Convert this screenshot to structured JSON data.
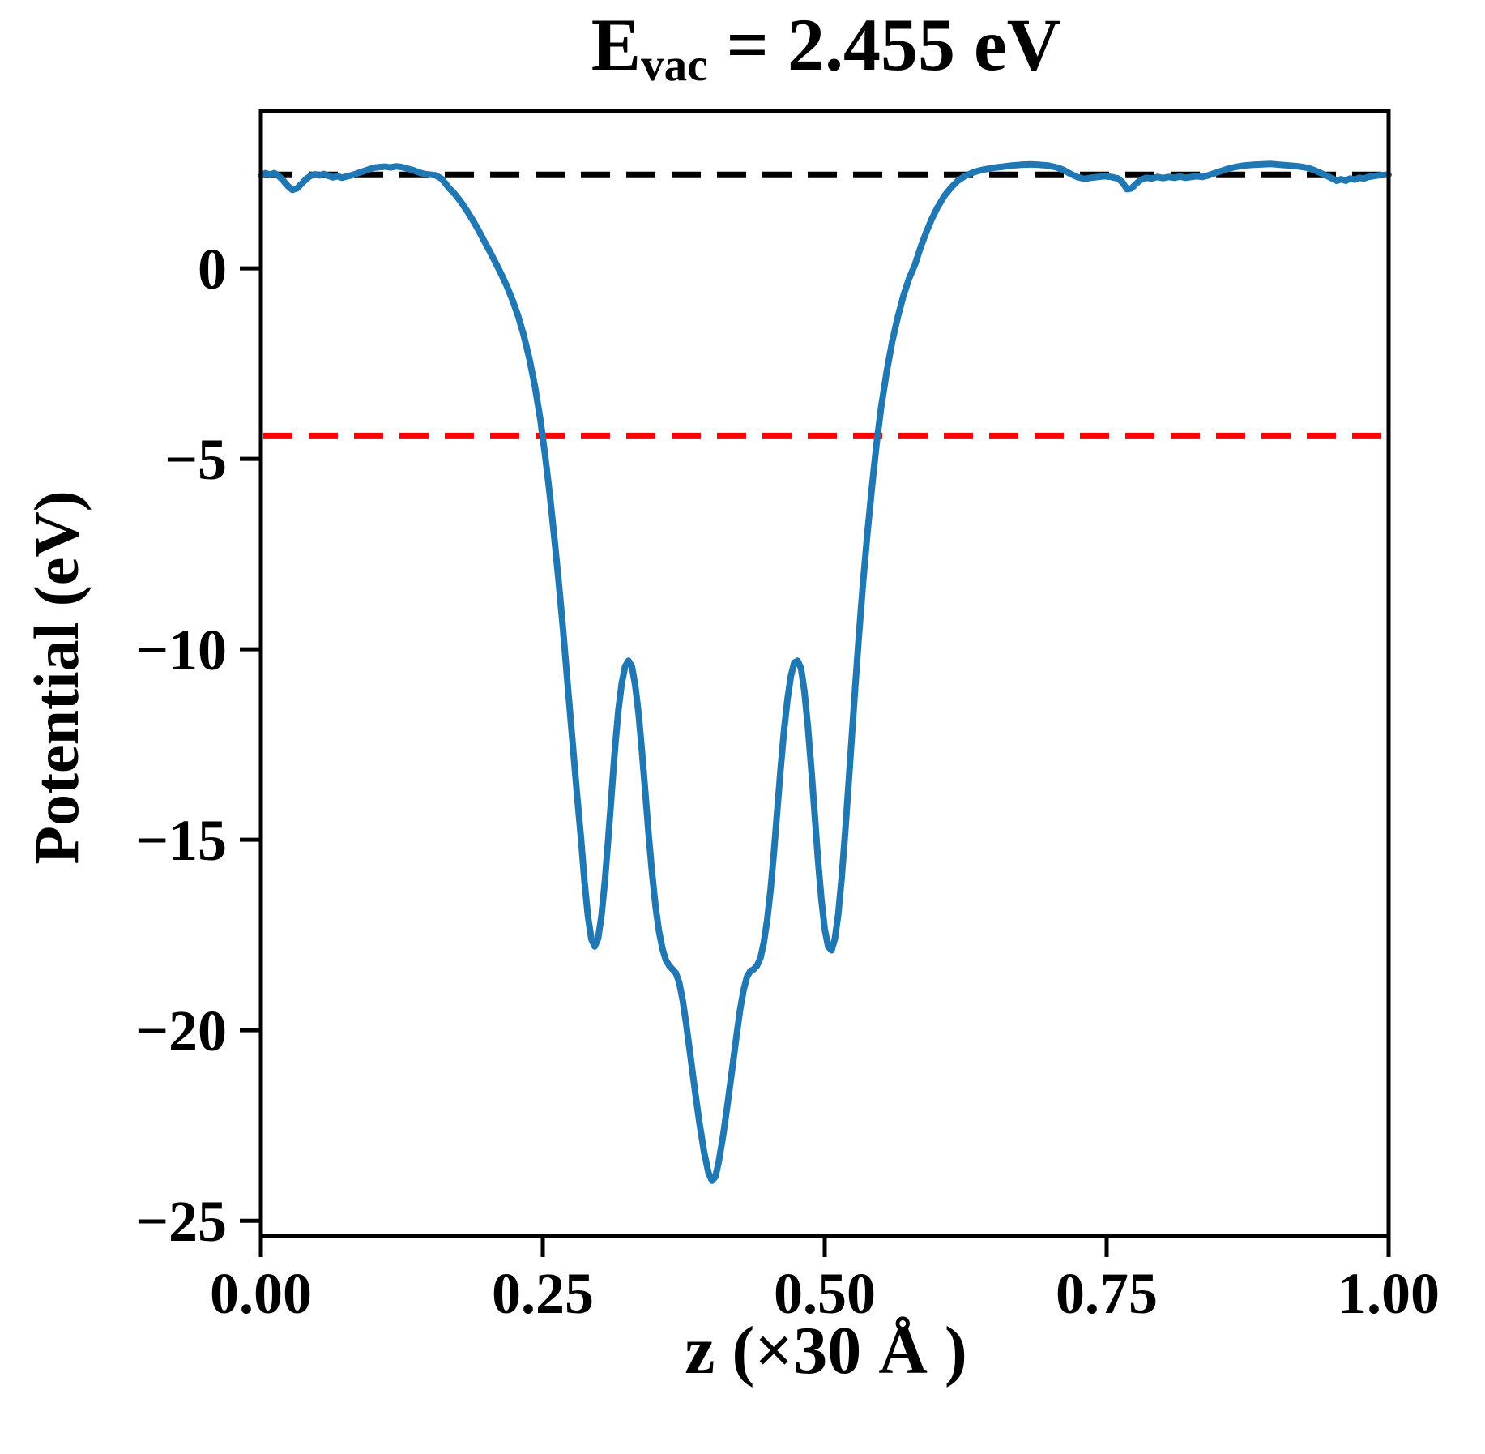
{
  "title": {
    "prefix": "E",
    "subscript": "vac",
    "rest": " = 2.455 eV"
  },
  "chart_data": {
    "type": "line",
    "title": "E_vac = 2.455 eV",
    "xlabel": "z (×30 Å )",
    "ylabel": "Potential (eV)",
    "xlim": [
      0.0,
      1.0
    ],
    "ylim": [
      -25.4,
      4.13
    ],
    "grid": false,
    "legend": "none",
    "xticks": [
      {
        "v": 0.0,
        "label": "0.00"
      },
      {
        "v": 0.25,
        "label": "0.25"
      },
      {
        "v": 0.5,
        "label": "0.50"
      },
      {
        "v": 0.75,
        "label": "0.75"
      },
      {
        "v": 1.0,
        "label": "1.00"
      }
    ],
    "yticks": [
      {
        "v": 0,
        "label": "0"
      },
      {
        "v": -5,
        "label": "−5"
      },
      {
        "v": -10,
        "label": "−10"
      },
      {
        "v": -15,
        "label": "−15"
      },
      {
        "v": -20,
        "label": "−20"
      },
      {
        "v": -25,
        "label": "−25"
      }
    ],
    "hlines": [
      {
        "name": "vacuum-level-line",
        "value": 2.455,
        "color": "#000000",
        "style": "dashed"
      },
      {
        "name": "fermi-level-line",
        "value": -4.4,
        "color": "#ff0000",
        "style": "dashed"
      }
    ],
    "series": [
      {
        "name": "planar-averaged-potential",
        "color": "#1f77b4",
        "points": [
          [
            0.0,
            2.43
          ],
          [
            0.004,
            2.5
          ],
          [
            0.008,
            2.46
          ],
          [
            0.012,
            2.5
          ],
          [
            0.016,
            2.42
          ],
          [
            0.02,
            2.3
          ],
          [
            0.024,
            2.16
          ],
          [
            0.028,
            2.06
          ],
          [
            0.032,
            2.1
          ],
          [
            0.036,
            2.22
          ],
          [
            0.04,
            2.34
          ],
          [
            0.044,
            2.43
          ],
          [
            0.048,
            2.47
          ],
          [
            0.052,
            2.44
          ],
          [
            0.056,
            2.48
          ],
          [
            0.06,
            2.43
          ],
          [
            0.064,
            2.39
          ],
          [
            0.068,
            2.42
          ],
          [
            0.072,
            2.38
          ],
          [
            0.076,
            2.41
          ],
          [
            0.08,
            2.44
          ],
          [
            0.084,
            2.48
          ],
          [
            0.088,
            2.52
          ],
          [
            0.092,
            2.56
          ],
          [
            0.096,
            2.6
          ],
          [
            0.1,
            2.64
          ],
          [
            0.105,
            2.66
          ],
          [
            0.11,
            2.67
          ],
          [
            0.115,
            2.65
          ],
          [
            0.12,
            2.68
          ],
          [
            0.125,
            2.66
          ],
          [
            0.13,
            2.62
          ],
          [
            0.135,
            2.58
          ],
          [
            0.14,
            2.52
          ],
          [
            0.145,
            2.48
          ],
          [
            0.15,
            2.46
          ],
          [
            0.155,
            2.44
          ],
          [
            0.16,
            2.36
          ],
          [
            0.164,
            2.22
          ],
          [
            0.167,
            2.1
          ],
          [
            0.17,
            2.02
          ],
          [
            0.174,
            1.88
          ],
          [
            0.178,
            1.72
          ],
          [
            0.183,
            1.5
          ],
          [
            0.188,
            1.26
          ],
          [
            0.193,
            1.0
          ],
          [
            0.198,
            0.72
          ],
          [
            0.203,
            0.44
          ],
          [
            0.208,
            0.16
          ],
          [
            0.213,
            -0.14
          ],
          [
            0.218,
            -0.46
          ],
          [
            0.223,
            -0.82
          ],
          [
            0.228,
            -1.24
          ],
          [
            0.233,
            -1.74
          ],
          [
            0.238,
            -2.36
          ],
          [
            0.243,
            -3.1
          ],
          [
            0.248,
            -4.0
          ],
          [
            0.252,
            -4.9
          ],
          [
            0.256,
            -5.9
          ],
          [
            0.26,
            -7.0
          ],
          [
            0.264,
            -8.2
          ],
          [
            0.268,
            -9.5
          ],
          [
            0.272,
            -10.9
          ],
          [
            0.276,
            -12.3
          ],
          [
            0.28,
            -13.7
          ],
          [
            0.284,
            -15.0
          ],
          [
            0.287,
            -16.1
          ],
          [
            0.29,
            -17.0
          ],
          [
            0.293,
            -17.6
          ],
          [
            0.296,
            -17.8
          ],
          [
            0.299,
            -17.6
          ],
          [
            0.302,
            -17.0
          ],
          [
            0.305,
            -16.1
          ],
          [
            0.308,
            -15.0
          ],
          [
            0.311,
            -13.8
          ],
          [
            0.314,
            -12.6
          ],
          [
            0.317,
            -11.6
          ],
          [
            0.32,
            -10.9
          ],
          [
            0.323,
            -10.45
          ],
          [
            0.326,
            -10.3
          ],
          [
            0.329,
            -10.45
          ],
          [
            0.332,
            -10.95
          ],
          [
            0.335,
            -11.7
          ],
          [
            0.338,
            -12.7
          ],
          [
            0.341,
            -13.8
          ],
          [
            0.344,
            -14.9
          ],
          [
            0.347,
            -15.9
          ],
          [
            0.35,
            -16.75
          ],
          [
            0.353,
            -17.4
          ],
          [
            0.356,
            -17.85
          ],
          [
            0.359,
            -18.15
          ],
          [
            0.362,
            -18.3
          ],
          [
            0.365,
            -18.4
          ],
          [
            0.368,
            -18.5
          ],
          [
            0.371,
            -18.75
          ],
          [
            0.374,
            -19.2
          ],
          [
            0.377,
            -19.8
          ],
          [
            0.381,
            -20.7
          ],
          [
            0.385,
            -21.6
          ],
          [
            0.389,
            -22.45
          ],
          [
            0.393,
            -23.2
          ],
          [
            0.397,
            -23.75
          ],
          [
            0.4,
            -23.95
          ],
          [
            0.403,
            -23.85
          ],
          [
            0.406,
            -23.45
          ],
          [
            0.41,
            -22.75
          ],
          [
            0.414,
            -21.9
          ],
          [
            0.418,
            -21.0
          ],
          [
            0.422,
            -20.1
          ],
          [
            0.425,
            -19.45
          ],
          [
            0.428,
            -18.95
          ],
          [
            0.431,
            -18.6
          ],
          [
            0.434,
            -18.45
          ],
          [
            0.437,
            -18.4
          ],
          [
            0.44,
            -18.3
          ],
          [
            0.443,
            -18.1
          ],
          [
            0.446,
            -17.7
          ],
          [
            0.449,
            -17.1
          ],
          [
            0.452,
            -16.3
          ],
          [
            0.455,
            -15.3
          ],
          [
            0.458,
            -14.2
          ],
          [
            0.461,
            -13.1
          ],
          [
            0.464,
            -12.1
          ],
          [
            0.467,
            -11.3
          ],
          [
            0.47,
            -10.7
          ],
          [
            0.473,
            -10.35
          ],
          [
            0.476,
            -10.3
          ],
          [
            0.479,
            -10.5
          ],
          [
            0.482,
            -11.1
          ],
          [
            0.485,
            -12.0
          ],
          [
            0.488,
            -13.1
          ],
          [
            0.491,
            -14.3
          ],
          [
            0.494,
            -15.5
          ],
          [
            0.497,
            -16.55
          ],
          [
            0.5,
            -17.35
          ],
          [
            0.503,
            -17.8
          ],
          [
            0.506,
            -17.9
          ],
          [
            0.509,
            -17.6
          ],
          [
            0.512,
            -16.95
          ],
          [
            0.515,
            -16.0
          ],
          [
            0.518,
            -14.85
          ],
          [
            0.521,
            -13.6
          ],
          [
            0.524,
            -12.3
          ],
          [
            0.527,
            -11.0
          ],
          [
            0.53,
            -9.75
          ],
          [
            0.534,
            -8.25
          ],
          [
            0.538,
            -6.9
          ],
          [
            0.542,
            -5.7
          ],
          [
            0.546,
            -4.6
          ],
          [
            0.55,
            -3.65
          ],
          [
            0.555,
            -2.7
          ],
          [
            0.56,
            -1.9
          ],
          [
            0.565,
            -1.25
          ],
          [
            0.57,
            -0.7
          ],
          [
            0.575,
            -0.25
          ],
          [
            0.58,
            0.1
          ],
          [
            0.585,
            0.55
          ],
          [
            0.59,
            0.95
          ],
          [
            0.595,
            1.3
          ],
          [
            0.6,
            1.6
          ],
          [
            0.606,
            1.9
          ],
          [
            0.612,
            2.12
          ],
          [
            0.618,
            2.3
          ],
          [
            0.624,
            2.42
          ],
          [
            0.63,
            2.5
          ],
          [
            0.636,
            2.56
          ],
          [
            0.642,
            2.6
          ],
          [
            0.65,
            2.64
          ],
          [
            0.658,
            2.67
          ],
          [
            0.666,
            2.7
          ],
          [
            0.674,
            2.72
          ],
          [
            0.682,
            2.73
          ],
          [
            0.69,
            2.72
          ],
          [
            0.698,
            2.7
          ],
          [
            0.706,
            2.65
          ],
          [
            0.712,
            2.58
          ],
          [
            0.718,
            2.48
          ],
          [
            0.724,
            2.4
          ],
          [
            0.73,
            2.35
          ],
          [
            0.736,
            2.38
          ],
          [
            0.742,
            2.4
          ],
          [
            0.748,
            2.42
          ],
          [
            0.754,
            2.4
          ],
          [
            0.76,
            2.36
          ],
          [
            0.764,
            2.26
          ],
          [
            0.768,
            2.08
          ],
          [
            0.772,
            2.1
          ],
          [
            0.776,
            2.22
          ],
          [
            0.78,
            2.32
          ],
          [
            0.785,
            2.38
          ],
          [
            0.79,
            2.36
          ],
          [
            0.795,
            2.4
          ],
          [
            0.8,
            2.37
          ],
          [
            0.805,
            2.4
          ],
          [
            0.81,
            2.38
          ],
          [
            0.815,
            2.41
          ],
          [
            0.82,
            2.38
          ],
          [
            0.825,
            2.4
          ],
          [
            0.83,
            2.42
          ],
          [
            0.835,
            2.4
          ],
          [
            0.84,
            2.44
          ],
          [
            0.846,
            2.5
          ],
          [
            0.852,
            2.56
          ],
          [
            0.858,
            2.62
          ],
          [
            0.864,
            2.66
          ],
          [
            0.872,
            2.7
          ],
          [
            0.88,
            2.72
          ],
          [
            0.888,
            2.73
          ],
          [
            0.896,
            2.74
          ],
          [
            0.904,
            2.72
          ],
          [
            0.912,
            2.7
          ],
          [
            0.92,
            2.68
          ],
          [
            0.928,
            2.64
          ],
          [
            0.934,
            2.58
          ],
          [
            0.94,
            2.5
          ],
          [
            0.946,
            2.42
          ],
          [
            0.95,
            2.36
          ],
          [
            0.954,
            2.3
          ],
          [
            0.958,
            2.34
          ],
          [
            0.962,
            2.3
          ],
          [
            0.966,
            2.36
          ],
          [
            0.97,
            2.33
          ],
          [
            0.974,
            2.38
          ],
          [
            0.978,
            2.36
          ],
          [
            0.982,
            2.4
          ],
          [
            0.986,
            2.42
          ],
          [
            0.99,
            2.44
          ],
          [
            0.995,
            2.45
          ],
          [
            1.0,
            2.46
          ]
        ]
      }
    ]
  }
}
